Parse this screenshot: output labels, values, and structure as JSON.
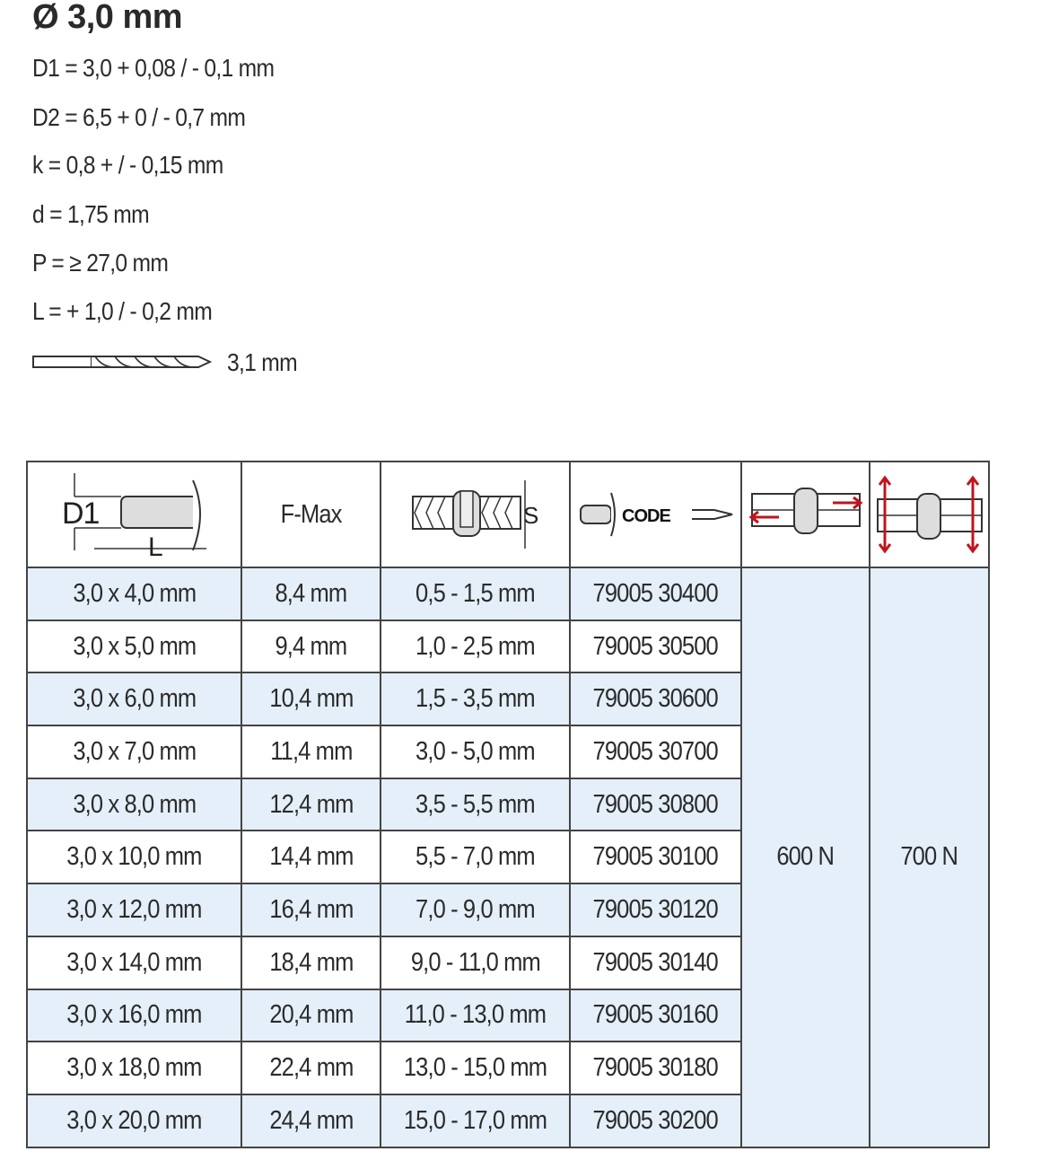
{
  "title": "Ø 3,0 mm",
  "specs": [
    "D1 = 3,0 + 0,08 / - 0,1 mm",
    "D2 = 6,5 + 0 / - 0,7 mm",
    "k = 0,8  + / - 0,15 mm",
    "d = 1,75 mm",
    "P = ≥ 27,0 mm",
    "L = + 1,0 / - 0,2 mm"
  ],
  "drill": {
    "icon": "drill-bit-icon",
    "value": "3,1 mm"
  },
  "table": {
    "headers": {
      "size": {
        "icon": "rivet-dimensions-icon",
        "label_d1": "D1",
        "label_l": "L"
      },
      "fmax": "F-Max",
      "grip": {
        "icon": "grip-range-icon",
        "label": "S"
      },
      "code": {
        "icon": "code-icon",
        "label": "CODE"
      },
      "shear": {
        "icon": "shear-strength-icon"
      },
      "tensile": {
        "icon": "tensile-strength-icon"
      }
    },
    "accent_color": "#c0141c",
    "row_tint": "#e4eff9",
    "rows": [
      [
        "3,0 x 4,0 mm",
        "8,4 mm",
        "0,5 - 1,5 mm",
        "79005 30400"
      ],
      [
        "3,0 x 5,0 mm",
        "9,4 mm",
        "1,0 - 2,5 mm",
        "79005 30500"
      ],
      [
        "3,0 x 6,0 mm",
        "10,4 mm",
        "1,5 - 3,5 mm",
        "79005 30600"
      ],
      [
        "3,0 x 7,0 mm",
        "11,4 mm",
        "3,0 - 5,0 mm",
        "79005 30700"
      ],
      [
        "3,0 x 8,0 mm",
        "12,4 mm",
        "3,5 - 5,5 mm",
        "79005 30800"
      ],
      [
        "3,0 x 10,0 mm",
        "14,4 mm",
        "5,5 - 7,0 mm",
        "79005 30100"
      ],
      [
        "3,0 x 12,0 mm",
        "16,4 mm",
        "7,0 - 9,0 mm",
        "79005 30120"
      ],
      [
        "3,0 x 14,0 mm",
        "18,4 mm",
        "9,0 - 11,0 mm",
        "79005 30140"
      ],
      [
        "3,0 x 16,0 mm",
        "20,4 mm",
        "11,0 - 13,0 mm",
        "79005 30160"
      ],
      [
        "3,0 x 18,0 mm",
        "22,4 mm",
        "13,0 - 15,0 mm",
        "79005 30180"
      ],
      [
        "3,0 x 20,0 mm",
        "24,4 mm",
        "15,0 - 17,0 mm",
        "79005 30200"
      ]
    ],
    "shear_value": "600 N",
    "tensile_value": "700 N"
  }
}
